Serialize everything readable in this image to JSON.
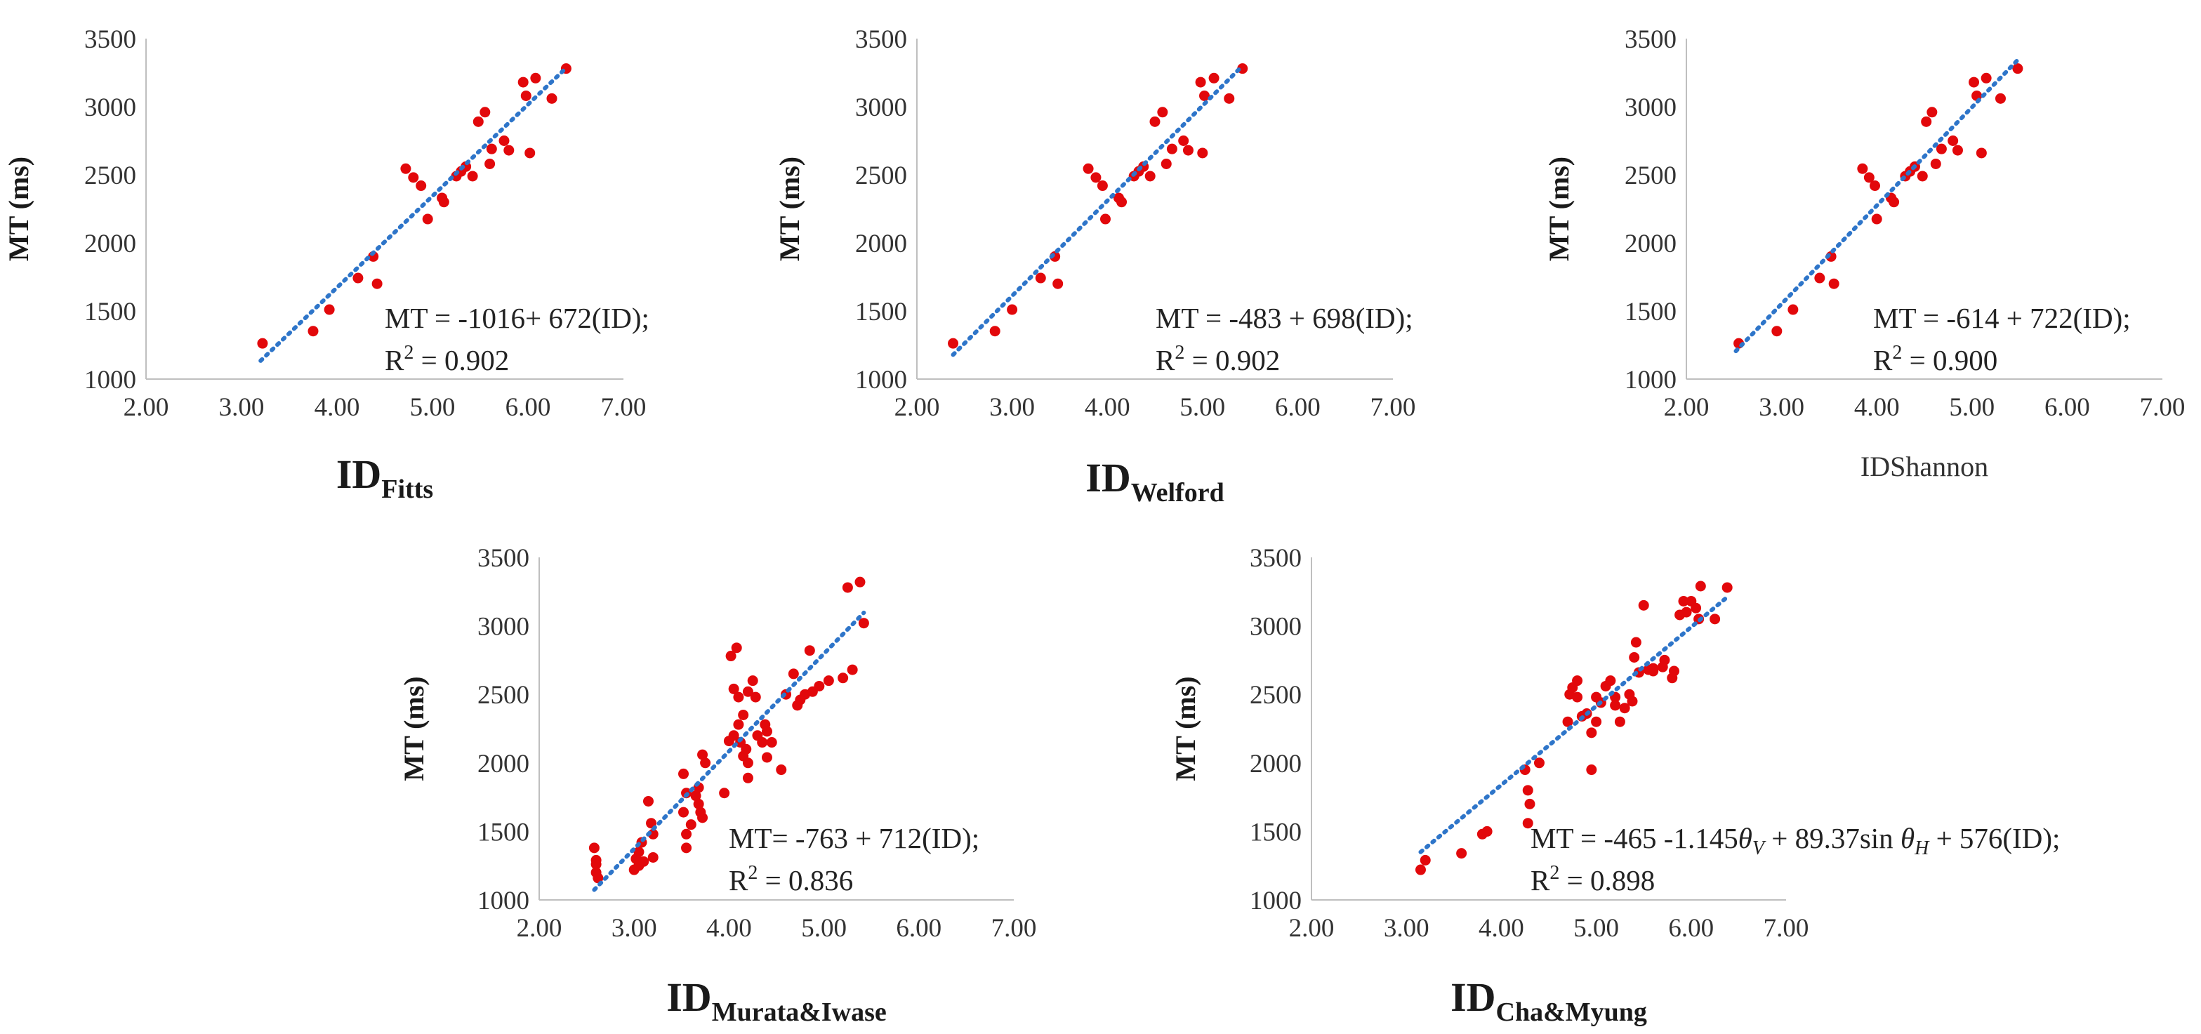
{
  "chart_data": [
    {
      "type": "scatter",
      "ylabel": "MT (ms)",
      "xlabel": {
        "main": "ID",
        "sub": "Fitts",
        "style": "subscript"
      },
      "xlim": [
        2,
        7
      ],
      "ylim": [
        1000,
        3500
      ],
      "x_ticks": [
        "2.00",
        "3.00",
        "4.00",
        "5.00",
        "6.00",
        "7.00"
      ],
      "y_ticks": [
        "1000",
        "1500",
        "2000",
        "2500",
        "3000",
        "3500"
      ],
      "trendline": {
        "style": "dotted",
        "intercept": -1016,
        "slope": 672,
        "x_range": [
          3.2,
          6.4
        ]
      },
      "equation": {
        "line1": "MT = -1016+ 672(ID);",
        "r2_prefix": "R",
        "r2_sup": "2",
        "r2_value": " = 0.902"
      },
      "points": [
        [
          3.22,
          1262
        ],
        [
          3.75,
          1352
        ],
        [
          3.92,
          1510
        ],
        [
          4.22,
          1742
        ],
        [
          4.38,
          1900
        ],
        [
          4.42,
          1700
        ],
        [
          4.72,
          2545
        ],
        [
          4.8,
          2480
        ],
        [
          4.88,
          2420
        ],
        [
          4.95,
          2175
        ],
        [
          5.1,
          2330
        ],
        [
          5.12,
          2300
        ],
        [
          5.25,
          2490
        ],
        [
          5.3,
          2525
        ],
        [
          5.35,
          2560
        ],
        [
          5.42,
          2490
        ],
        [
          5.48,
          2890
        ],
        [
          5.55,
          2960
        ],
        [
          5.6,
          2580
        ],
        [
          5.62,
          2690
        ],
        [
          5.75,
          2750
        ],
        [
          5.8,
          2680
        ],
        [
          5.95,
          3180
        ],
        [
          5.98,
          3080
        ],
        [
          6.02,
          2660
        ],
        [
          6.08,
          3210
        ],
        [
          6.25,
          3060
        ],
        [
          6.4,
          3280
        ]
      ]
    },
    {
      "type": "scatter",
      "ylabel": "MT (ms)",
      "xlabel": {
        "main": "ID",
        "sub": "Welford",
        "style": "subscript"
      },
      "xlim": [
        2,
        7
      ],
      "ylim": [
        1000,
        3500
      ],
      "x_ticks": [
        "2.00",
        "3.00",
        "4.00",
        "5.00",
        "6.00",
        "7.00"
      ],
      "y_ticks": [
        "1000",
        "1500",
        "2000",
        "2500",
        "3000",
        "3500"
      ],
      "trendline": {
        "style": "dotted",
        "intercept": -483,
        "slope": 698,
        "x_range": [
          2.38,
          5.42
        ]
      },
      "equation": {
        "line1": "MT = -483 + 698(ID);",
        "r2_prefix": "R",
        "r2_sup": "2",
        "r2_value": " = 0.902"
      },
      "points": [
        [
          2.38,
          1262
        ],
        [
          2.82,
          1352
        ],
        [
          3.0,
          1510
        ],
        [
          3.3,
          1742
        ],
        [
          3.45,
          1900
        ],
        [
          3.48,
          1700
        ],
        [
          3.8,
          2545
        ],
        [
          3.88,
          2480
        ],
        [
          3.95,
          2420
        ],
        [
          3.98,
          2175
        ],
        [
          4.12,
          2330
        ],
        [
          4.15,
          2300
        ],
        [
          4.28,
          2490
        ],
        [
          4.33,
          2525
        ],
        [
          4.38,
          2560
        ],
        [
          4.45,
          2490
        ],
        [
          4.5,
          2890
        ],
        [
          4.58,
          2960
        ],
        [
          4.62,
          2580
        ],
        [
          4.68,
          2690
        ],
        [
          4.8,
          2750
        ],
        [
          4.85,
          2680
        ],
        [
          4.98,
          3180
        ],
        [
          5.02,
          3080
        ],
        [
          5.0,
          2660
        ],
        [
          5.12,
          3210
        ],
        [
          5.28,
          3060
        ],
        [
          5.42,
          3280
        ]
      ]
    },
    {
      "type": "scatter",
      "ylabel": "MT (ms)",
      "xlabel": {
        "main": "IDShannon",
        "style": "plain"
      },
      "xlim": [
        2,
        7
      ],
      "ylim": [
        1000,
        3500
      ],
      "x_ticks": [
        "2.00",
        "3.00",
        "4.00",
        "5.00",
        "6.00",
        "7.00"
      ],
      "y_ticks": [
        "1000",
        "1500",
        "2000",
        "2500",
        "3000",
        "3500"
      ],
      "trendline": {
        "style": "dotted",
        "intercept": -614,
        "slope": 722,
        "x_range": [
          2.52,
          5.48
        ]
      },
      "equation": {
        "line1": "MT = -614 + 722(ID);",
        "r2_prefix": "R",
        "r2_sup": "2",
        "r2_value": " = 0.900"
      },
      "points": [
        [
          2.55,
          1262
        ],
        [
          2.95,
          1352
        ],
        [
          3.12,
          1510
        ],
        [
          3.4,
          1742
        ],
        [
          3.52,
          1900
        ],
        [
          3.55,
          1700
        ],
        [
          3.85,
          2545
        ],
        [
          3.92,
          2480
        ],
        [
          3.98,
          2420
        ],
        [
          4.0,
          2175
        ],
        [
          4.15,
          2330
        ],
        [
          4.18,
          2300
        ],
        [
          4.3,
          2490
        ],
        [
          4.35,
          2525
        ],
        [
          4.4,
          2560
        ],
        [
          4.48,
          2490
        ],
        [
          4.52,
          2890
        ],
        [
          4.58,
          2960
        ],
        [
          4.62,
          2580
        ],
        [
          4.68,
          2690
        ],
        [
          4.8,
          2750
        ],
        [
          4.85,
          2680
        ],
        [
          5.02,
          3180
        ],
        [
          5.05,
          3080
        ],
        [
          5.1,
          2660
        ],
        [
          5.15,
          3210
        ],
        [
          5.3,
          3060
        ],
        [
          5.48,
          3280
        ]
      ]
    },
    {
      "type": "scatter",
      "ylabel": "MT (ms)",
      "xlabel": {
        "main": "ID",
        "sub": "Murata&Iwase",
        "style": "subscript"
      },
      "xlim": [
        2,
        7
      ],
      "ylim": [
        1000,
        3500
      ],
      "x_ticks": [
        "2.00",
        "3.00",
        "4.00",
        "5.00",
        "6.00",
        "7.00"
      ],
      "y_ticks": [
        "1000",
        "1500",
        "2000",
        "2500",
        "3000",
        "3500"
      ],
      "trendline": {
        "style": "dotted",
        "intercept": -763,
        "slope": 712,
        "x_range": [
          2.58,
          5.42
        ]
      },
      "equation": {
        "line1": "MT= -763 + 712(ID);",
        "r2_prefix": "R",
        "r2_sup": "2",
        "r2_value": " = 0.836"
      },
      "points": [
        [
          2.58,
          1380
        ],
        [
          2.6,
          1290
        ],
        [
          2.6,
          1200
        ],
        [
          2.62,
          1160
        ],
        [
          2.6,
          1260
        ],
        [
          3.0,
          1220
        ],
        [
          3.02,
          1300
        ],
        [
          3.05,
          1350
        ],
        [
          3.05,
          1250
        ],
        [
          3.08,
          1420
        ],
        [
          3.1,
          1280
        ],
        [
          3.15,
          1720
        ],
        [
          3.18,
          1560
        ],
        [
          3.2,
          1480
        ],
        [
          3.2,
          1310
        ],
        [
          3.52,
          1920
        ],
        [
          3.55,
          1780
        ],
        [
          3.52,
          1640
        ],
        [
          3.55,
          1480
        ],
        [
          3.55,
          1380
        ],
        [
          3.6,
          1550
        ],
        [
          3.65,
          1760
        ],
        [
          3.68,
          1700
        ],
        [
          3.7,
          1640
        ],
        [
          3.72,
          1600
        ],
        [
          3.68,
          1820
        ],
        [
          3.72,
          2060
        ],
        [
          3.75,
          2000
        ],
        [
          4.02,
          2780
        ],
        [
          4.08,
          2840
        ],
        [
          4.05,
          2540
        ],
        [
          4.1,
          2480
        ],
        [
          4.05,
          2200
        ],
        [
          4.1,
          2280
        ],
        [
          4.12,
          2150
        ],
        [
          4.15,
          2050
        ],
        [
          4.18,
          2100
        ],
        [
          4.2,
          2000
        ],
        [
          4.25,
          2600
        ],
        [
          4.2,
          2520
        ],
        [
          4.28,
          2480
        ],
        [
          4.3,
          2200
        ],
        [
          4.35,
          2150
        ],
        [
          4.38,
          2280
        ],
        [
          4.4,
          2040
        ],
        [
          4.45,
          2150
        ],
        [
          4.55,
          1950
        ],
        [
          4.6,
          2500
        ],
        [
          4.68,
          2650
        ],
        [
          4.72,
          2420
        ],
        [
          4.75,
          2460
        ],
        [
          4.8,
          2500
        ],
        [
          4.85,
          2820
        ],
        [
          4.88,
          2520
        ],
        [
          4.95,
          2560
        ],
        [
          5.05,
          2600
        ],
        [
          5.2,
          2620
        ],
        [
          5.25,
          3280
        ],
        [
          5.3,
          2680
        ],
        [
          5.38,
          3320
        ],
        [
          5.42,
          3020
        ],
        [
          4.0,
          2160
        ],
        [
          4.15,
          2350
        ],
        [
          4.4,
          2230
        ],
        [
          3.95,
          1780
        ],
        [
          4.2,
          1890
        ]
      ]
    },
    {
      "type": "scatter",
      "ylabel": "MT (ms)",
      "xlabel": {
        "main": "ID",
        "sub": "Cha&Myung",
        "style": "subscript"
      },
      "xlim": [
        2,
        7
      ],
      "ylim": [
        1000,
        3500
      ],
      "x_ticks": [
        "2.00",
        "3.00",
        "4.00",
        "5.00",
        "6.00",
        "7.00"
      ],
      "y_ticks": [
        "1000",
        "1500",
        "2000",
        "2500",
        "3000",
        "3500"
      ],
      "trendline": {
        "style": "dotted",
        "intercept": -465,
        "slope": 576,
        "x_range": [
          3.15,
          6.38
        ]
      },
      "equation": {
        "line1_parts": [
          "MT = -465 -1.145",
          "θ",
          "V",
          " + 89.37sin ",
          "θ",
          "H",
          " + 576(ID);"
        ],
        "r2_prefix": "R",
        "r2_sup": "2",
        "r2_value": " = 0.898"
      },
      "points": [
        [
          3.15,
          1220
        ],
        [
          3.2,
          1290
        ],
        [
          3.58,
          1340
        ],
        [
          3.8,
          1480
        ],
        [
          3.85,
          1500
        ],
        [
          4.25,
          1950
        ],
        [
          4.28,
          1800
        ],
        [
          4.3,
          1700
        ],
        [
          4.28,
          1560
        ],
        [
          4.4,
          2000
        ],
        [
          4.7,
          2300
        ],
        [
          4.72,
          2500
        ],
        [
          4.75,
          2550
        ],
        [
          4.8,
          2600
        ],
        [
          4.85,
          2340
        ],
        [
          4.9,
          2360
        ],
        [
          4.95,
          2220
        ],
        [
          4.95,
          1950
        ],
        [
          5.0,
          2300
        ],
        [
          5.05,
          2440
        ],
        [
          5.1,
          2560
        ],
        [
          5.15,
          2600
        ],
        [
          5.2,
          2480
        ],
        [
          5.25,
          2300
        ],
        [
          5.3,
          2400
        ],
        [
          5.35,
          2500
        ],
        [
          5.38,
          2450
        ],
        [
          5.4,
          2770
        ],
        [
          5.42,
          2880
        ],
        [
          5.45,
          2660
        ],
        [
          5.5,
          3150
        ],
        [
          5.55,
          2680
        ],
        [
          5.6,
          2670
        ],
        [
          5.7,
          2700
        ],
        [
          5.72,
          2750
        ],
        [
          5.8,
          2620
        ],
        [
          5.82,
          2670
        ],
        [
          5.88,
          3080
        ],
        [
          5.92,
          3180
        ],
        [
          5.95,
          3100
        ],
        [
          6.0,
          3180
        ],
        [
          6.05,
          3130
        ],
        [
          6.08,
          3050
        ],
        [
          6.1,
          3290
        ],
        [
          6.25,
          3050
        ],
        [
          6.38,
          3280
        ],
        [
          5.0,
          2480
        ],
        [
          5.2,
          2420
        ],
        [
          4.8,
          2480
        ],
        [
          5.6,
          2690
        ]
      ]
    }
  ]
}
